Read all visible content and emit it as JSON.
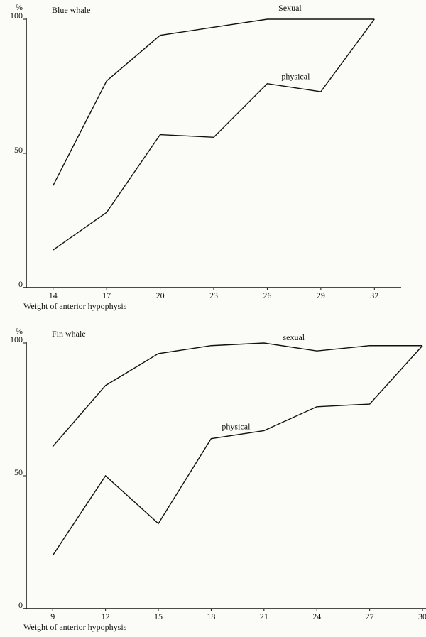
{
  "chart_data": [
    {
      "type": "line",
      "title": "Blue whale",
      "xlabel": "Weight of anterior hypophysis",
      "ylabel": "%",
      "x": [
        14,
        17,
        20,
        23,
        26,
        29,
        32
      ],
      "series": [
        {
          "name": "Sexual",
          "color": "#111111",
          "values": [
            38,
            77,
            94,
            97,
            100,
            100,
            100
          ]
        },
        {
          "name": "physical",
          "color": "#111111",
          "values": [
            14,
            28,
            57,
            56,
            76,
            73,
            100
          ]
        }
      ],
      "xlim": [
        12.5,
        33.5
      ],
      "xticks": [
        14,
        17,
        20,
        23,
        26,
        29,
        32
      ],
      "ylim": [
        0,
        100
      ],
      "yticks": [
        0,
        50,
        100
      ],
      "grid": false
    },
    {
      "type": "line",
      "title": "Fin whale",
      "xlabel": "Weight of anterior hypophysis",
      "ylabel": "%",
      "x": [
        9,
        12,
        15,
        18,
        21,
        24,
        27,
        30
      ],
      "series": [
        {
          "name": "sexual",
          "color": "#111111",
          "values": [
            61,
            84,
            96,
            99,
            100,
            97,
            99,
            99
          ]
        },
        {
          "name": "physical",
          "color": "#111111",
          "values": [
            20,
            50,
            32,
            64,
            67,
            76,
            77,
            99
          ]
        }
      ],
      "xlim": [
        7.5,
        30.2
      ],
      "xticks": [
        9,
        12,
        15,
        18,
        21,
        24,
        27,
        30
      ],
      "ylim": [
        0,
        100
      ],
      "yticks": [
        0,
        50,
        100
      ],
      "grid": false
    }
  ]
}
